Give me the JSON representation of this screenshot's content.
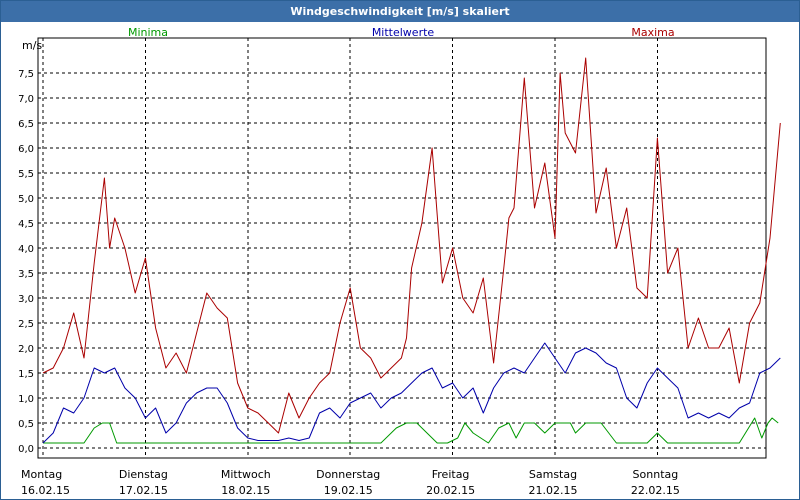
{
  "window": {
    "title": "Windgeschwindigkeit [m/s] skaliert"
  },
  "chart_data": {
    "type": "line",
    "title": "Windgeschwindigkeit [m/s] skaliert",
    "ylabel": "m/s",
    "ylim": [
      -0.2,
      8.2
    ],
    "xlim": [
      0,
      7.2
    ],
    "yticks": [
      0.0,
      0.5,
      1.0,
      1.5,
      2.0,
      2.5,
      3.0,
      3.5,
      4.0,
      4.5,
      5.0,
      5.5,
      6.0,
      6.5,
      7.0,
      7.5
    ],
    "ytick_labels": [
      "0,0",
      "0,5",
      "1,0",
      "1,5",
      "2,0",
      "2,5",
      "3,0",
      "3,5",
      "4,0",
      "4,5",
      "5,0",
      "5,5",
      "6,0",
      "6,5",
      "7,0",
      "7,5"
    ],
    "xticks": [
      {
        "x": 0,
        "day": "Montag",
        "date": "16.02.15"
      },
      {
        "x": 1,
        "day": "Dienstag",
        "date": "17.02.15"
      },
      {
        "x": 2,
        "day": "Mittwoch",
        "date": "18.02.15"
      },
      {
        "x": 3,
        "day": "Donnerstag",
        "date": "19.02.15"
      },
      {
        "x": 4,
        "day": "Freitag",
        "date": "20.02.15"
      },
      {
        "x": 5,
        "day": "Samstag",
        "date": "21.02.15"
      },
      {
        "x": 6,
        "day": "Sonntag",
        "date": "22.02.15"
      }
    ],
    "grid": true,
    "colors": {
      "Minima": "#009900",
      "Mittelwerte": "#0000aa",
      "Maxima": "#aa0000"
    },
    "series": [
      {
        "name": "Minima",
        "x": [
          0,
          0.15,
          0.3,
          0.4,
          0.5,
          0.58,
          0.65,
          0.72,
          0.8,
          1.0,
          1.5,
          1.8,
          2.0,
          2.5,
          3.0,
          3.3,
          3.45,
          3.55,
          3.65,
          3.75,
          3.85,
          3.95,
          4.05,
          4.12,
          4.2,
          4.35,
          4.45,
          4.55,
          4.62,
          4.7,
          4.8,
          4.9,
          5.0,
          5.08,
          5.15,
          5.2,
          5.3,
          5.35,
          5.45,
          5.6,
          5.7,
          5.8,
          5.9,
          6.0,
          6.1,
          6.3,
          6.5,
          6.8,
          6.95,
          7.02,
          7.08,
          7.12,
          7.18
        ],
        "values": [
          0.1,
          0.1,
          0.1,
          0.1,
          0.4,
          0.5,
          0.5,
          0.1,
          0.1,
          0.1,
          0.1,
          0.1,
          0.1,
          0.1,
          0.1,
          0.1,
          0.4,
          0.5,
          0.5,
          0.3,
          0.1,
          0.1,
          0.2,
          0.5,
          0.3,
          0.1,
          0.4,
          0.5,
          0.2,
          0.5,
          0.5,
          0.3,
          0.5,
          0.5,
          0.5,
          0.3,
          0.5,
          0.5,
          0.5,
          0.1,
          0.1,
          0.1,
          0.1,
          0.3,
          0.1,
          0.1,
          0.1,
          0.1,
          0.6,
          0.2,
          0.5,
          0.6,
          0.5
        ]
      },
      {
        "name": "Mittelwerte",
        "x": [
          0,
          0.1,
          0.2,
          0.3,
          0.4,
          0.5,
          0.6,
          0.7,
          0.8,
          0.9,
          1.0,
          1.1,
          1.2,
          1.3,
          1.4,
          1.5,
          1.6,
          1.7,
          1.8,
          1.9,
          2.0,
          2.1,
          2.2,
          2.3,
          2.4,
          2.5,
          2.6,
          2.7,
          2.8,
          2.9,
          3.0,
          3.1,
          3.2,
          3.3,
          3.4,
          3.5,
          3.6,
          3.7,
          3.8,
          3.9,
          4.0,
          4.1,
          4.2,
          4.3,
          4.4,
          4.5,
          4.6,
          4.7,
          4.8,
          4.9,
          5.0,
          5.1,
          5.2,
          5.3,
          5.4,
          5.5,
          5.6,
          5.7,
          5.8,
          5.9,
          6.0,
          6.1,
          6.2,
          6.3,
          6.4,
          6.5,
          6.6,
          6.7,
          6.8,
          6.9,
          7.0,
          7.1,
          7.2
        ],
        "values": [
          0.1,
          0.3,
          0.8,
          0.7,
          1.0,
          1.6,
          1.5,
          1.6,
          1.2,
          1.0,
          0.6,
          0.8,
          0.3,
          0.5,
          0.9,
          1.1,
          1.2,
          1.2,
          0.9,
          0.4,
          0.2,
          0.15,
          0.15,
          0.15,
          0.2,
          0.15,
          0.2,
          0.7,
          0.8,
          0.6,
          0.9,
          1.0,
          1.1,
          0.8,
          1.0,
          1.1,
          1.3,
          1.5,
          1.6,
          1.2,
          1.3,
          1.0,
          1.2,
          0.7,
          1.2,
          1.5,
          1.6,
          1.5,
          1.8,
          2.1,
          1.8,
          1.5,
          1.9,
          2.0,
          1.9,
          1.7,
          1.6,
          1.0,
          0.8,
          1.3,
          1.6,
          1.4,
          1.2,
          0.6,
          0.7,
          0.6,
          0.7,
          0.6,
          0.8,
          0.9,
          1.5,
          1.6,
          1.8
        ]
      },
      {
        "name": "Maxima",
        "x": [
          0,
          0.1,
          0.2,
          0.3,
          0.4,
          0.5,
          0.6,
          0.65,
          0.7,
          0.8,
          0.9,
          1.0,
          1.1,
          1.2,
          1.3,
          1.4,
          1.5,
          1.6,
          1.7,
          1.8,
          1.9,
          2.0,
          2.1,
          2.2,
          2.3,
          2.4,
          2.5,
          2.6,
          2.7,
          2.8,
          2.9,
          3.0,
          3.1,
          3.2,
          3.3,
          3.4,
          3.5,
          3.55,
          3.6,
          3.7,
          3.8,
          3.9,
          4.0,
          4.1,
          4.2,
          4.3,
          4.4,
          4.5,
          4.55,
          4.6,
          4.7,
          4.8,
          4.9,
          5.0,
          5.05,
          5.1,
          5.2,
          5.3,
          5.4,
          5.5,
          5.6,
          5.7,
          5.8,
          5.9,
          6.0,
          6.1,
          6.2,
          6.3,
          6.4,
          6.5,
          6.6,
          6.7,
          6.8,
          6.9,
          7.0,
          7.1,
          7.2
        ],
        "values": [
          1.5,
          1.6,
          2.0,
          2.7,
          1.8,
          3.7,
          5.4,
          4.0,
          4.6,
          4.0,
          3.1,
          3.8,
          2.4,
          1.6,
          1.9,
          1.5,
          2.3,
          3.1,
          2.8,
          2.6,
          1.3,
          0.8,
          0.7,
          0.5,
          0.3,
          1.1,
          0.6,
          1.0,
          1.3,
          1.5,
          2.5,
          3.2,
          2.0,
          1.8,
          1.4,
          1.6,
          1.8,
          2.2,
          3.6,
          4.5,
          6.0,
          3.3,
          4.0,
          3.0,
          2.7,
          3.4,
          1.7,
          3.6,
          4.6,
          4.8,
          7.4,
          4.8,
          5.7,
          4.2,
          7.5,
          6.3,
          5.9,
          7.8,
          4.7,
          5.6,
          4.0,
          4.8,
          3.2,
          3.0,
          6.2,
          3.5,
          4.0,
          2.0,
          2.6,
          2.0,
          2.0,
          2.4,
          1.3,
          2.5,
          2.9,
          4.2,
          6.5
        ]
      }
    ]
  }
}
